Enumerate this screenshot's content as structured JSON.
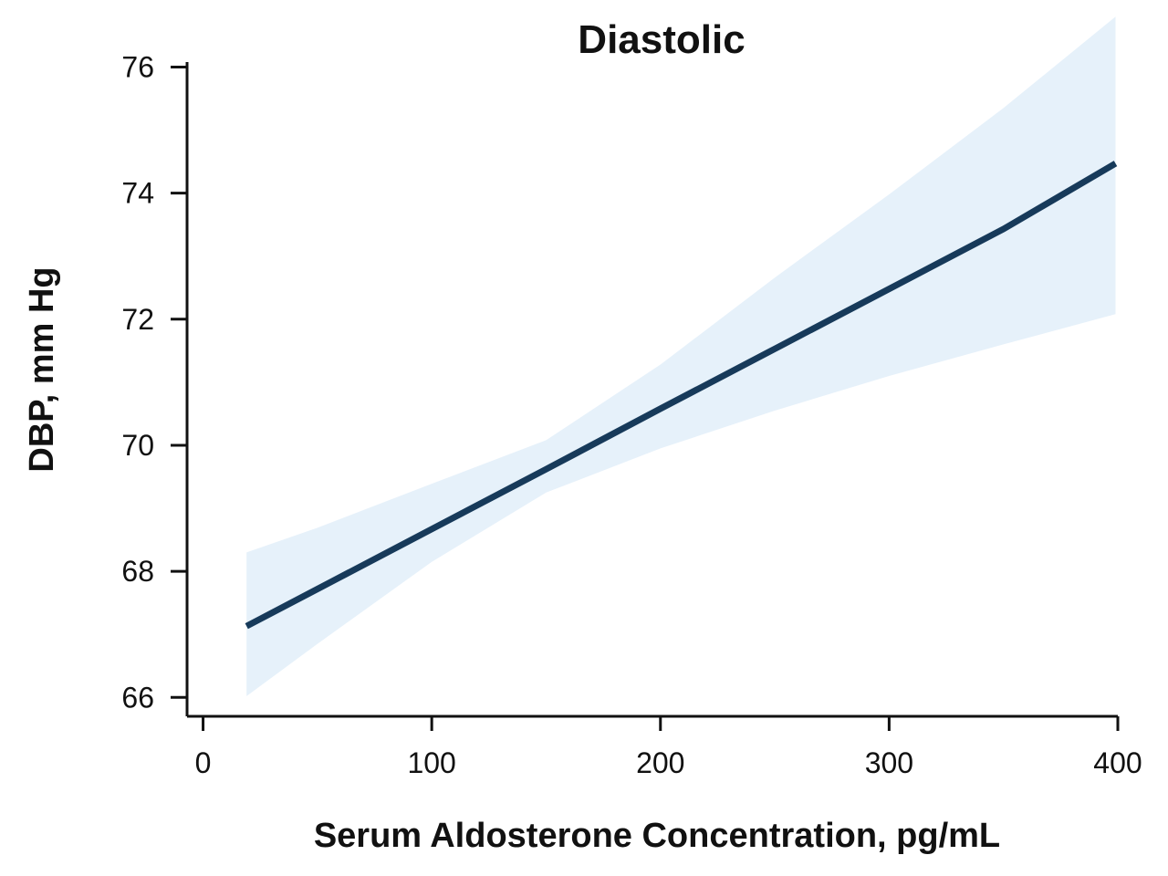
{
  "chart_data": {
    "type": "line",
    "title": "Diastolic",
    "xlabel": "Serum Aldosterone Concentration, pg/mL",
    "ylabel": "DBP, mm Hg",
    "xlim": [
      -7,
      400
    ],
    "ylim": [
      65.7,
      76.05
    ],
    "xticks": [
      0,
      100,
      200,
      300,
      400
    ],
    "yticks": [
      66,
      68,
      70,
      72,
      74,
      76
    ],
    "grid": false,
    "series": [
      {
        "x": [
          19,
          50,
          100,
          150,
          200,
          250,
          300,
          350,
          399
        ],
        "y": [
          67.13,
          67.72,
          68.67,
          69.62,
          70.58,
          71.53,
          72.48,
          73.43,
          74.47
        ]
      }
    ],
    "confidence_band": {
      "x": [
        19,
        50,
        100,
        150,
        200,
        250,
        300,
        350,
        399
      ],
      "lower": [
        66.02,
        66.85,
        68.15,
        69.25,
        69.95,
        70.55,
        71.1,
        71.6,
        72.08
      ],
      "upper": [
        68.3,
        68.69,
        69.39,
        70.08,
        71.28,
        72.66,
        73.98,
        75.35,
        76.8
      ]
    },
    "colors": {
      "line": "#173a5a",
      "band": "#e6f1fa",
      "axis": "#111111"
    }
  }
}
